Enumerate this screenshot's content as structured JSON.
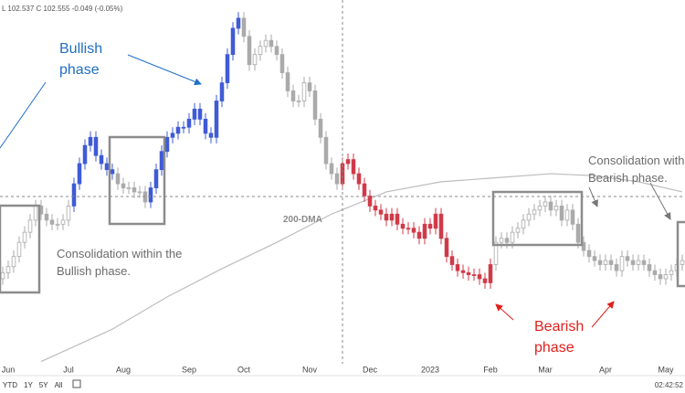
{
  "header": "L 102.537  C 102.555  -0.049 (-0.05%)",
  "toolbar": {
    "ranges": [
      "YTD",
      "1Y",
      "5Y",
      "All"
    ],
    "time": "02:42:52"
  },
  "chart_data": {
    "type": "candlestick",
    "xlim": [
      -0.5,
      124.5
    ],
    "ylim": [
      97.4,
      115.5
    ],
    "xticks": [
      {
        "value": 1,
        "label": "Jun"
      },
      {
        "value": 12,
        "label": "Jul"
      },
      {
        "value": 22,
        "label": "Aug"
      },
      {
        "value": 34,
        "label": "Sep"
      },
      {
        "value": 44,
        "label": "Oct"
      },
      {
        "value": 56,
        "label": "Nov"
      },
      {
        "value": 67,
        "label": "Dec"
      },
      {
        "value": 78,
        "label": "2023"
      },
      {
        "value": 89,
        "label": "Feb"
      },
      {
        "value": 99,
        "label": "Mar"
      },
      {
        "value": 110,
        "label": "Apr"
      },
      {
        "value": 121,
        "label": "May"
      }
    ],
    "candles": [
      [
        101.7,
        102.3,
        101.4,
        102.0
      ],
      [
        102.0,
        102.6,
        101.7,
        102.3
      ],
      [
        102.3,
        103.1,
        102.0,
        102.8
      ],
      [
        102.8,
        103.8,
        102.5,
        103.5
      ],
      [
        103.5,
        104.3,
        103.2,
        104.0
      ],
      [
        104.0,
        104.9,
        103.7,
        104.6
      ],
      [
        104.6,
        105.6,
        104.3,
        105.3
      ],
      [
        105.3,
        105.6,
        104.6,
        104.9
      ],
      [
        104.9,
        105.2,
        104.3,
        104.6
      ],
      [
        104.6,
        104.9,
        104.1,
        104.4
      ],
      [
        104.4,
        104.7,
        104.1,
        104.4
      ],
      [
        104.4,
        104.9,
        104.1,
        104.6
      ],
      [
        104.6,
        105.6,
        104.3,
        105.3
      ],
      [
        105.3,
        106.7,
        105.0,
        106.4
      ],
      [
        106.4,
        107.7,
        106.1,
        107.4
      ],
      [
        107.4,
        108.6,
        107.1,
        108.3
      ],
      [
        108.3,
        109.0,
        108.0,
        108.7
      ],
      [
        108.7,
        109.0,
        107.5,
        107.8
      ],
      [
        107.8,
        108.1,
        107.1,
        107.4
      ],
      [
        107.4,
        107.7,
        106.8,
        107.1
      ],
      [
        107.1,
        107.4,
        106.6,
        106.9
      ],
      [
        106.9,
        107.2,
        106.1,
        106.4
      ],
      [
        106.4,
        106.7,
        105.9,
        106.2
      ],
      [
        106.2,
        106.5,
        105.9,
        106.2
      ],
      [
        106.2,
        106.5,
        105.7,
        106.0
      ],
      [
        106.0,
        106.3,
        105.7,
        106.0
      ],
      [
        106.0,
        106.3,
        105.2,
        105.5
      ],
      [
        105.5,
        106.5,
        105.2,
        106.2
      ],
      [
        106.2,
        107.4,
        105.9,
        107.1
      ],
      [
        107.1,
        108.3,
        106.8,
        108.0
      ],
      [
        108.0,
        109.0,
        107.7,
        108.7
      ],
      [
        108.7,
        109.2,
        108.4,
        108.9
      ],
      [
        108.9,
        109.5,
        108.6,
        109.2
      ],
      [
        109.2,
        109.5,
        108.9,
        109.2
      ],
      [
        109.2,
        109.9,
        108.9,
        109.6
      ],
      [
        109.6,
        110.4,
        109.3,
        110.1
      ],
      [
        110.1,
        110.4,
        109.3,
        109.6
      ],
      [
        109.6,
        109.9,
        108.6,
        108.9
      ],
      [
        108.9,
        109.2,
        108.4,
        108.7
      ],
      [
        108.7,
        110.8,
        108.4,
        110.5
      ],
      [
        110.5,
        111.7,
        110.2,
        111.4
      ],
      [
        111.4,
        113.1,
        111.1,
        112.8
      ],
      [
        112.8,
        114.4,
        112.5,
        114.1
      ],
      [
        114.1,
        114.9,
        113.8,
        114.6
      ],
      [
        114.6,
        114.9,
        113.4,
        113.7
      ],
      [
        113.7,
        114.0,
        112.0,
        112.3
      ],
      [
        112.3,
        113.1,
        112.0,
        112.8
      ],
      [
        112.8,
        113.5,
        112.5,
        113.2
      ],
      [
        113.2,
        113.8,
        112.9,
        113.5
      ],
      [
        113.5,
        113.8,
        112.9,
        113.2
      ],
      [
        113.2,
        113.5,
        112.5,
        112.8
      ],
      [
        112.8,
        113.1,
        111.6,
        111.9
      ],
      [
        111.9,
        112.2,
        110.7,
        111.0
      ],
      [
        111.0,
        111.3,
        110.2,
        110.5
      ],
      [
        110.5,
        110.8,
        110.2,
        110.5
      ],
      [
        110.5,
        111.7,
        110.2,
        111.4
      ],
      [
        111.4,
        111.7,
        110.7,
        111.0
      ],
      [
        111.0,
        111.3,
        109.3,
        109.6
      ],
      [
        109.6,
        109.9,
        108.4,
        108.7
      ],
      [
        108.7,
        109.0,
        107.1,
        107.4
      ],
      [
        107.4,
        107.7,
        106.6,
        106.9
      ],
      [
        106.9,
        107.2,
        106.1,
        106.4
      ],
      [
        106.4,
        107.7,
        106.1,
        107.4
      ],
      [
        107.4,
        107.9,
        107.1,
        107.6
      ],
      [
        107.6,
        107.9,
        106.6,
        106.9
      ],
      [
        106.9,
        107.2,
        106.1,
        106.4
      ],
      [
        106.4,
        106.7,
        105.5,
        105.8
      ],
      [
        105.8,
        106.1,
        105.0,
        105.3
      ],
      [
        105.3,
        105.6,
        104.8,
        105.1
      ],
      [
        105.1,
        105.4,
        104.6,
        104.9
      ],
      [
        104.9,
        105.2,
        104.3,
        104.6
      ],
      [
        104.6,
        105.2,
        104.3,
        104.9
      ],
      [
        104.9,
        105.2,
        104.1,
        104.4
      ],
      [
        104.4,
        104.7,
        103.9,
        104.2
      ],
      [
        104.2,
        104.5,
        103.9,
        104.2
      ],
      [
        104.2,
        104.5,
        103.7,
        104.0
      ],
      [
        104.0,
        104.3,
        103.4,
        103.7
      ],
      [
        103.7,
        104.7,
        103.4,
        104.4
      ],
      [
        104.4,
        104.7,
        103.9,
        104.2
      ],
      [
        104.2,
        105.2,
        103.9,
        104.9
      ],
      [
        104.9,
        105.2,
        103.4,
        103.7
      ],
      [
        103.7,
        104.0,
        102.5,
        102.8
      ],
      [
        102.8,
        103.1,
        102.1,
        102.4
      ],
      [
        102.4,
        102.7,
        101.8,
        102.1
      ],
      [
        102.1,
        102.4,
        101.7,
        102.0
      ],
      [
        102.0,
        102.3,
        101.6,
        101.9
      ],
      [
        101.9,
        102.2,
        101.6,
        101.9
      ],
      [
        101.9,
        102.2,
        101.4,
        101.7
      ],
      [
        101.7,
        102.0,
        101.2,
        101.5
      ],
      [
        101.5,
        102.7,
        101.2,
        102.4
      ],
      [
        102.4,
        103.8,
        102.1,
        103.5
      ],
      [
        103.5,
        104.0,
        103.2,
        103.7
      ],
      [
        103.7,
        104.0,
        103.2,
        103.5
      ],
      [
        103.5,
        104.3,
        103.2,
        104.0
      ],
      [
        104.0,
        104.5,
        103.7,
        104.2
      ],
      [
        104.2,
        104.9,
        103.9,
        104.6
      ],
      [
        104.6,
        105.2,
        104.3,
        104.9
      ],
      [
        104.9,
        105.4,
        104.6,
        105.1
      ],
      [
        105.1,
        105.6,
        104.8,
        105.3
      ],
      [
        105.3,
        105.8,
        105.0,
        105.5
      ],
      [
        105.5,
        105.8,
        104.8,
        105.1
      ],
      [
        105.1,
        105.6,
        104.8,
        105.3
      ],
      [
        105.3,
        105.6,
        104.3,
        104.6
      ],
      [
        104.6,
        105.4,
        104.3,
        105.1
      ],
      [
        105.1,
        105.4,
        104.1,
        104.4
      ],
      [
        104.4,
        104.7,
        103.2,
        103.5
      ],
      [
        103.5,
        103.8,
        102.8,
        103.1
      ],
      [
        103.1,
        103.4,
        102.5,
        102.8
      ],
      [
        102.8,
        103.1,
        102.3,
        102.6
      ],
      [
        102.6,
        102.9,
        102.1,
        102.4
      ],
      [
        102.4,
        102.9,
        102.1,
        102.6
      ],
      [
        102.6,
        102.9,
        102.1,
        102.4
      ],
      [
        102.4,
        102.7,
        101.8,
        102.1
      ],
      [
        102.1,
        103.1,
        101.8,
        102.8
      ],
      [
        102.8,
        103.1,
        102.3,
        102.6
      ],
      [
        102.6,
        102.9,
        102.1,
        102.4
      ],
      [
        102.4,
        102.9,
        102.1,
        102.6
      ],
      [
        102.6,
        102.9,
        102.1,
        102.4
      ],
      [
        102.4,
        102.7,
        101.8,
        102.1
      ],
      [
        102.1,
        102.4,
        101.6,
        101.9
      ],
      [
        101.9,
        102.2,
        101.4,
        101.7
      ],
      [
        101.7,
        102.2,
        101.4,
        101.9
      ],
      [
        101.9,
        102.4,
        101.6,
        102.1
      ],
      [
        102.1,
        102.7,
        101.8,
        102.4
      ],
      [
        102.4,
        102.9,
        102.1,
        102.6
      ]
    ],
    "candle_colors": [
      "#aaaaaa",
      "#aaaaaa",
      "#aaaaaa",
      "#aaaaaa",
      "#aaaaaa",
      "#aaaaaa",
      "#aaaaaa",
      "#aaaaaa",
      "#aaaaaa",
      "#aaaaaa",
      "#aaaaaa",
      "#aaaaaa",
      "#aaaaaa",
      "#3f5bd6",
      "#3f5bd6",
      "#3f5bd6",
      "#3f5bd6",
      "#3f5bd6",
      "#3f5bd6",
      "#3f5bd6",
      "#3f5bd6",
      "#aaaaaa",
      "#aaaaaa",
      "#aaaaaa",
      "#aaaaaa",
      "#aaaaaa",
      "#aaaaaa",
      "#3f5bd6",
      "#3f5bd6",
      "#3f5bd6",
      "#3f5bd6",
      "#3f5bd6",
      "#3f5bd6",
      "#3f5bd6",
      "#3f5bd6",
      "#3f5bd6",
      "#3f5bd6",
      "#3f5bd6",
      "#3f5bd6",
      "#3f5bd6",
      "#3f5bd6",
      "#3f5bd6",
      "#3f5bd6",
      "#3f5bd6",
      "#aaaaaa",
      "#aaaaaa",
      "#aaaaaa",
      "#aaaaaa",
      "#aaaaaa",
      "#aaaaaa",
      "#aaaaaa",
      "#aaaaaa",
      "#aaaaaa",
      "#aaaaaa",
      "#aaaaaa",
      "#aaaaaa",
      "#aaaaaa",
      "#aaaaaa",
      "#aaaaaa",
      "#aaaaaa",
      "#aaaaaa",
      "#aaaaaa",
      "#d03a48",
      "#d03a48",
      "#d03a48",
      "#d03a48",
      "#d03a48",
      "#d03a48",
      "#d03a48",
      "#d03a48",
      "#d03a48",
      "#d03a48",
      "#d03a48",
      "#d03a48",
      "#d03a48",
      "#d03a48",
      "#d03a48",
      "#d03a48",
      "#d03a48",
      "#d03a48",
      "#d03a48",
      "#d03a48",
      "#d03a48",
      "#d03a48",
      "#d03a48",
      "#d03a48",
      "#d03a48",
      "#d03a48",
      "#d03a48",
      "#d03a48",
      "#aaaaaa",
      "#aaaaaa",
      "#aaaaaa",
      "#aaaaaa",
      "#aaaaaa",
      "#aaaaaa",
      "#aaaaaa",
      "#aaaaaa",
      "#aaaaaa",
      "#aaaaaa",
      "#aaaaaa",
      "#aaaaaa",
      "#aaaaaa",
      "#aaaaaa",
      "#aaaaaa",
      "#aaaaaa",
      "#aaaaaa",
      "#aaaaaa",
      "#aaaaaa",
      "#aaaaaa",
      "#aaaaaa",
      "#aaaaaa",
      "#aaaaaa",
      "#aaaaaa",
      "#aaaaaa",
      "#aaaaaa",
      "#aaaaaa",
      "#aaaaaa",
      "#aaaaaa",
      "#aaaaaa",
      "#aaaaaa",
      "#aaaaaa",
      "#aaaaaa",
      "#aaaaaa",
      "#aaaaaa"
    ],
    "moving_average": {
      "name": "200-DMA",
      "color": "#bdbdbd",
      "x": [
        7,
        20,
        30,
        40,
        50,
        60,
        70,
        80,
        90,
        100,
        108,
        116,
        124
      ],
      "values": [
        97.6,
        99.2,
        100.8,
        102.2,
        103.5,
        104.9,
        106.0,
        106.5,
        106.7,
        106.9,
        106.8,
        106.5,
        106.0
      ]
    },
    "annotations": [
      {
        "lines": [
          "Bullish",
          "phase"
        ],
        "color": "#1f6fc5"
      },
      {
        "lines": [
          "Consolidation within the",
          "Bullish phase."
        ],
        "color": "#6b6b6b"
      },
      {
        "lines": [
          "Consolidation within",
          "Bearish phase."
        ],
        "color": "#6b6b6b"
      },
      {
        "lines": [
          "Bearish",
          "phase"
        ],
        "color": "#e0201b"
      }
    ]
  }
}
